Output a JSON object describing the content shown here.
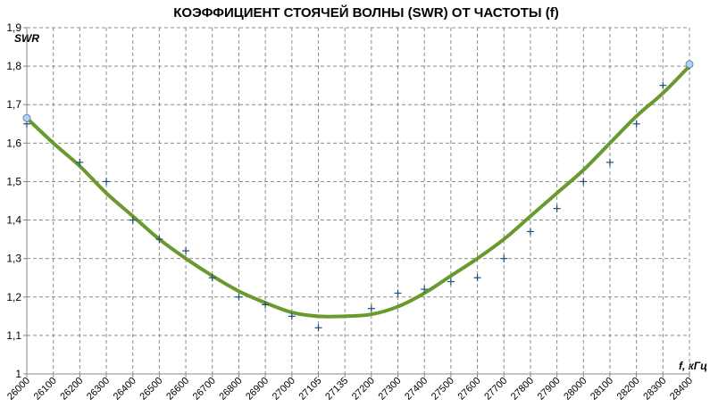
{
  "chart_data": {
    "type": "scatter",
    "title": "КОЭФФИЦИЕНТ СТОЯЧЕЙ ВОЛНЫ (SWR) ОТ ЧАСТОТЫ (f)",
    "xlabel": "f, кГц",
    "ylabel": "SWR",
    "categories": [
      "26000",
      "26100",
      "26200",
      "26300",
      "26400",
      "26500",
      "26600",
      "26700",
      "26800",
      "26900",
      "27000",
      "27105",
      "27135",
      "27200",
      "27300",
      "27400",
      "27500",
      "27600",
      "27700",
      "27800",
      "27900",
      "28000",
      "28100",
      "28200",
      "28300",
      "28400"
    ],
    "ylim": [
      1,
      1.9
    ],
    "yticks": [
      "1",
      "1,1",
      "1,2",
      "1,3",
      "1,4",
      "1,5",
      "1,6",
      "1,7",
      "1,8",
      "1,9"
    ],
    "grid": true,
    "series": [
      {
        "name": "",
        "marker": "plus",
        "values": [
          1.65,
          null,
          1.55,
          1.5,
          1.4,
          1.35,
          1.32,
          1.25,
          1.2,
          1.18,
          1.15,
          1.12,
          null,
          1.17,
          1.21,
          1.22,
          1.24,
          1.25,
          1.3,
          1.37,
          1.43,
          1.5,
          1.55,
          1.65,
          1.75,
          1.8
        ]
      },
      {
        "name": "",
        "marker": "circle",
        "values": [
          1.665,
          null,
          null,
          null,
          null,
          null,
          null,
          null,
          null,
          null,
          null,
          null,
          null,
          null,
          null,
          null,
          null,
          null,
          null,
          null,
          null,
          null,
          null,
          null,
          null,
          1.805
        ]
      },
      {
        "name": "",
        "marker": "line",
        "values": [
          1.665,
          1.6,
          1.54,
          1.47,
          1.41,
          1.35,
          1.3,
          1.255,
          1.215,
          1.185,
          1.16,
          1.15,
          1.15,
          1.155,
          1.175,
          1.21,
          1.255,
          1.3,
          1.35,
          1.41,
          1.47,
          1.53,
          1.6,
          1.67,
          1.73,
          1.8
        ]
      }
    ],
    "colors": {
      "line": "#6a9a2e",
      "markers": "#1f4e79",
      "circle_fill": "#b7d3ea",
      "grid": "#8c8c8c"
    }
  }
}
